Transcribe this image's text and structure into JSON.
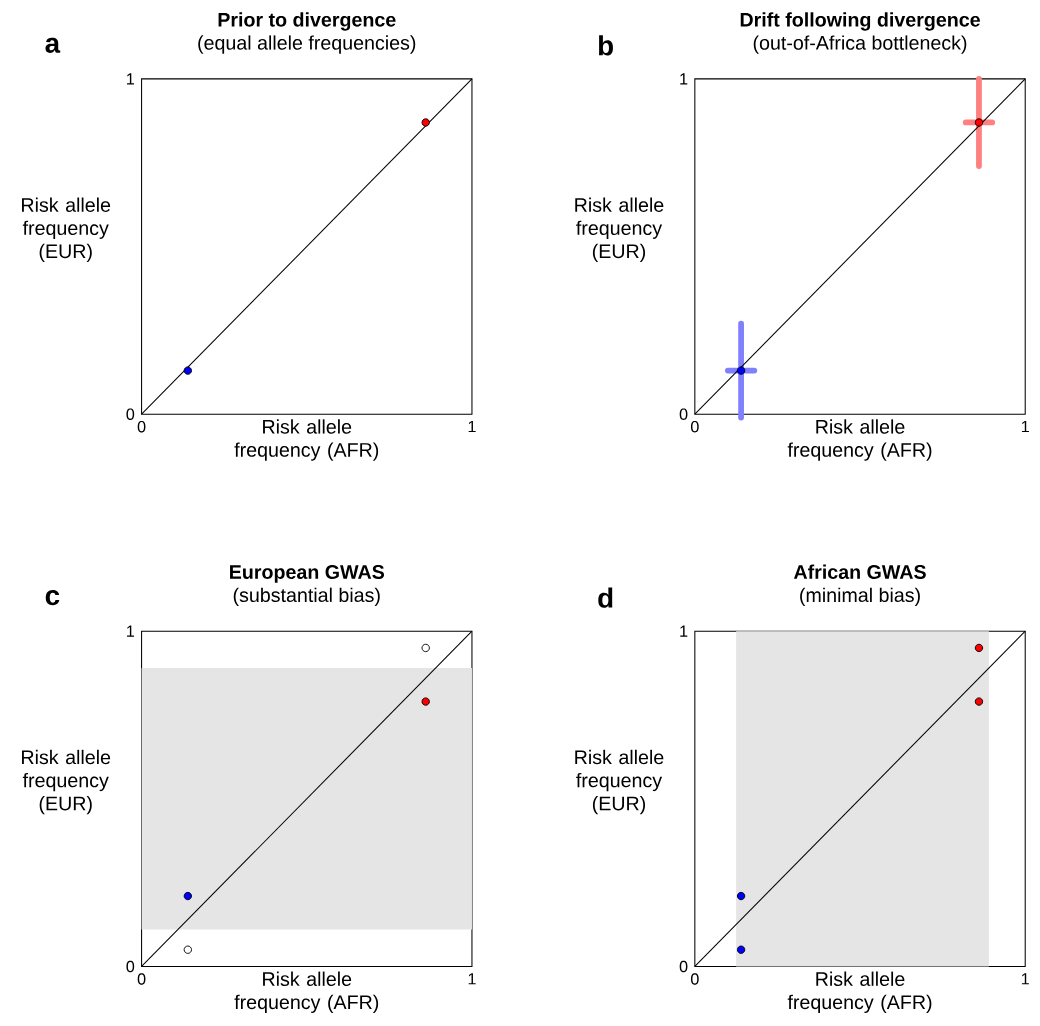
{
  "chart_data": [
    {
      "type": "scatter",
      "title": "Prior to divergence",
      "subtitle": "(equal allele frequencies)",
      "xlabel": "Risk allele frequency (AFR)",
      "ylabel": "Risk allele frequency (EUR)",
      "annotations": [
        "a"
      ],
      "xlim": [
        0,
        1
      ],
      "ylim": [
        0,
        1
      ],
      "xticks": [
        0,
        1
      ],
      "yticks": [
        0,
        1
      ],
      "marker": "circle",
      "series": [
        {
          "type": "line",
          "marker": "none",
          "color": "#000000",
          "x": [
            0,
            1
          ],
          "values": [
            0,
            1
          ]
        },
        {
          "x": [
            0.14,
            0.86
          ],
          "values": [
            0.13,
            0.87
          ],
          "colors": [
            "#0000ff",
            "#ff0000"
          ]
        }
      ]
    },
    {
      "type": "scatter",
      "title": "Drift following divergence",
      "subtitle": "(out-of-Africa bottleneck)",
      "xlabel": "Risk allele frequency (AFR)",
      "ylabel": "Risk allele frequency (EUR)",
      "annotations": [
        "b"
      ],
      "xlim": [
        0,
        1
      ],
      "ylim": [
        0,
        1
      ],
      "xticks": [
        0,
        1
      ],
      "yticks": [
        0,
        1
      ],
      "marker": "circle",
      "series": [
        {
          "type": "line",
          "marker": "none",
          "color": "#000000",
          "x": [
            0,
            1
          ],
          "values": [
            0,
            1
          ]
        },
        {
          "x": [
            0.14,
            0.86
          ],
          "values": [
            0.13,
            0.87
          ],
          "colors": [
            "#0000ff",
            "#ff0000"
          ],
          "errors": [
            0.14,
            0.13
          ],
          "xerrors": [
            0.04,
            0.04
          ]
        }
      ]
    },
    {
      "type": "scatter",
      "title": "European GWAS",
      "subtitle": "(substantial bias)",
      "xlabel": "Risk allele frequency (AFR)",
      "ylabel": "Risk allele frequency (EUR)",
      "annotations": [
        "c"
      ],
      "xlim": [
        0,
        1
      ],
      "ylim": [
        0,
        1
      ],
      "xticks": [
        0,
        1
      ],
      "yticks": [
        0,
        1
      ],
      "marker": "circle",
      "bands": [
        {
          "axis": "y",
          "from": 0.11,
          "to": 0.89,
          "color": "#e5e5e5"
        }
      ],
      "series": [
        {
          "type": "line",
          "marker": "none",
          "color": "#000000",
          "x": [
            0,
            1
          ],
          "values": [
            0,
            1
          ]
        },
        {
          "x": [
            0.14,
            0.14,
            0.86,
            0.86
          ],
          "values": [
            0.05,
            0.21,
            0.79,
            0.95
          ],
          "colors": [
            "#ffffff",
            "#0000ff",
            "#ff0000",
            "#ffffff"
          ]
        }
      ]
    },
    {
      "type": "scatter",
      "title": "African GWAS",
      "subtitle": "(minimal bias)",
      "xlabel": "Risk allele frequency (AFR)",
      "ylabel": "Risk allele frequency (EUR)",
      "annotations": [
        "d"
      ],
      "xlim": [
        0,
        1
      ],
      "ylim": [
        0,
        1
      ],
      "xticks": [
        0,
        1
      ],
      "yticks": [
        0,
        1
      ],
      "marker": "circle",
      "bands": [
        {
          "axis": "x",
          "from": 0.125,
          "to": 0.89,
          "color": "#e5e5e5"
        }
      ],
      "series": [
        {
          "type": "line",
          "marker": "none",
          "color": "#000000",
          "x": [
            0,
            1
          ],
          "values": [
            0,
            1
          ]
        },
        {
          "x": [
            0.14,
            0.14,
            0.86,
            0.86
          ],
          "values": [
            0.05,
            0.21,
            0.79,
            0.95
          ],
          "colors": [
            "#0000ff",
            "#0000ff",
            "#ff0000",
            "#ff0000"
          ]
        }
      ]
    }
  ]
}
